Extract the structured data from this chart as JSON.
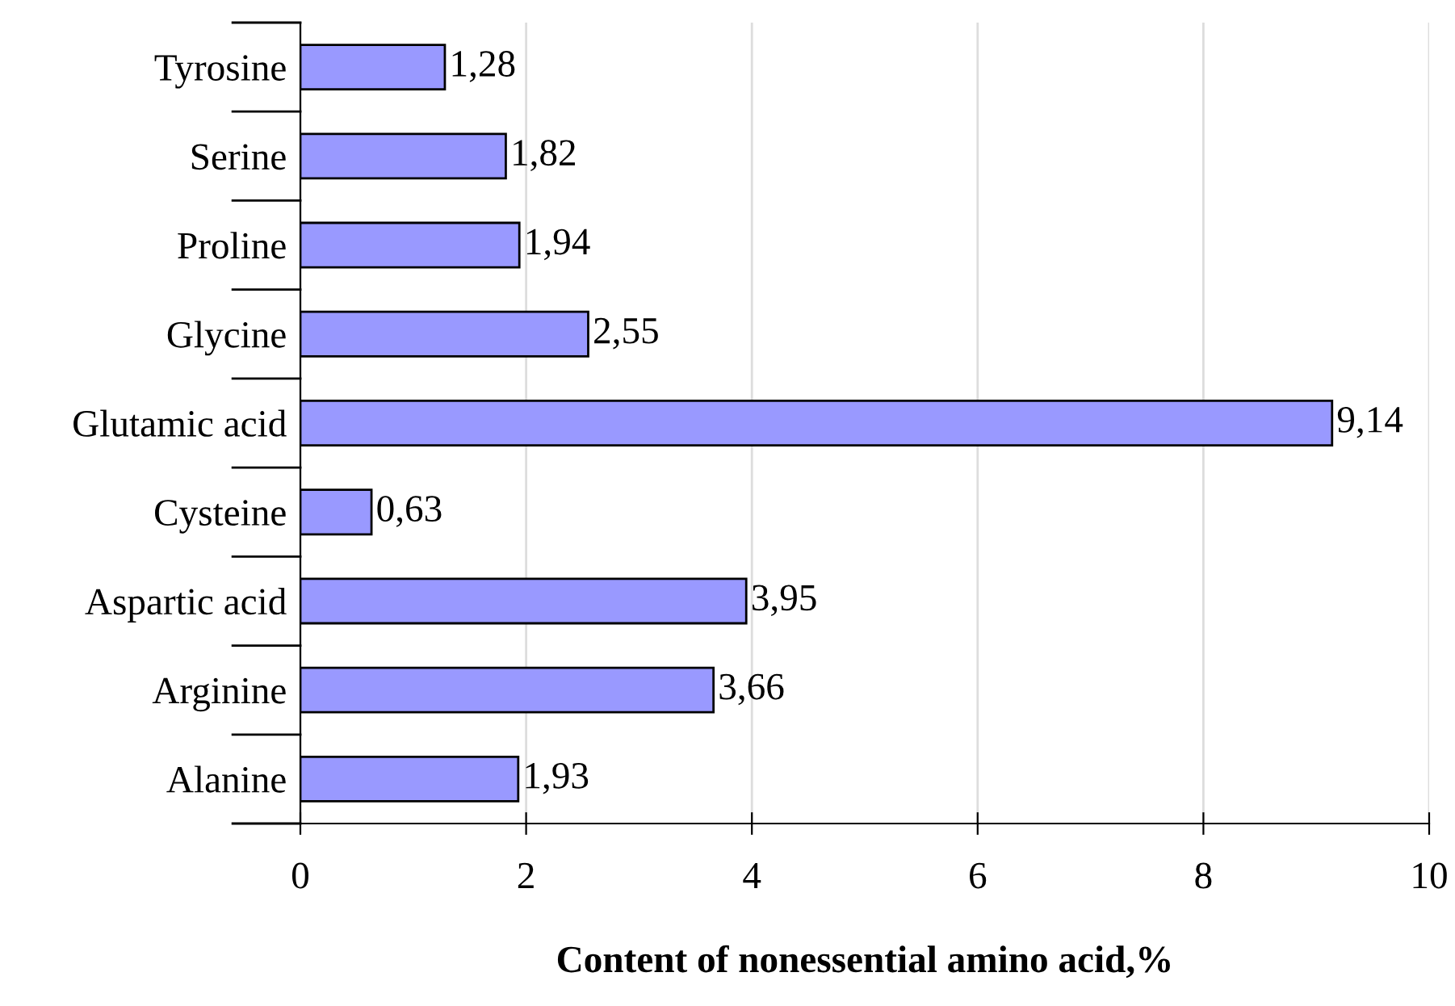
{
  "chart_data": {
    "type": "bar",
    "orientation": "horizontal",
    "xlabel": "Content of nonessential amino acid,%",
    "categories": [
      "Tyrosine",
      "Serine",
      "Proline",
      "Glycine",
      "Glutamic acid",
      "Cysteine",
      "Aspartic acid",
      "Arginine",
      "Alanine"
    ],
    "values": [
      1.28,
      1.82,
      1.94,
      2.55,
      9.14,
      0.63,
      3.95,
      3.66,
      1.93
    ],
    "value_labels": [
      "1,28",
      "1,82",
      "1,94",
      "2,55",
      "9,14",
      "0,63",
      "3,95",
      "3,66",
      "1,93"
    ],
    "color": "#9999ff",
    "xlim": [
      0,
      10
    ],
    "xticks": [
      0,
      2,
      4,
      6,
      8,
      10
    ],
    "grid": "x",
    "legend": false
  }
}
